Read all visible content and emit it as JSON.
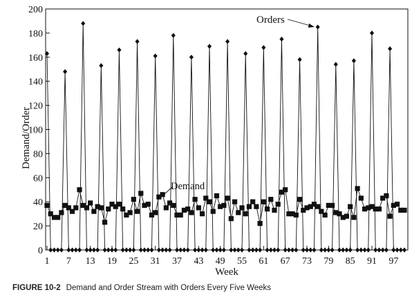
{
  "chart_data": {
    "type": "line",
    "xlabel": "Week",
    "ylabel": "Demand/Order",
    "xlim": [
      1,
      100
    ],
    "ylim": [
      0,
      200
    ],
    "x_ticks": [
      1,
      7,
      13,
      19,
      25,
      31,
      37,
      43,
      49,
      55,
      61,
      67,
      73,
      79,
      85,
      91,
      97
    ],
    "y_ticks": [
      0,
      20,
      40,
      60,
      80,
      100,
      120,
      140,
      160,
      180,
      200
    ],
    "grid": false,
    "series": [
      {
        "name": "Demand",
        "marker": "square",
        "color": "#111111",
        "x": [
          1,
          2,
          3,
          4,
          5,
          6,
          7,
          8,
          9,
          10,
          11,
          12,
          13,
          14,
          15,
          16,
          17,
          18,
          19,
          20,
          21,
          22,
          23,
          24,
          25,
          26,
          27,
          28,
          29,
          30,
          31,
          32,
          33,
          34,
          35,
          36,
          37,
          38,
          39,
          40,
          41,
          42,
          43,
          44,
          45,
          46,
          47,
          48,
          49,
          50,
          51,
          52,
          53,
          54,
          55,
          56,
          57,
          58,
          59,
          60,
          61,
          62,
          63,
          64,
          65,
          66,
          67,
          68,
          69,
          70,
          71,
          72,
          73,
          74,
          75,
          76,
          77,
          78,
          79,
          80,
          81,
          82,
          83,
          84,
          85,
          86,
          87,
          88,
          89,
          90,
          91,
          92,
          93,
          94,
          95,
          96,
          97,
          98,
          99,
          100
        ],
        "values": [
          37,
          30,
          27,
          27,
          31,
          37,
          35,
          32,
          35,
          50,
          37,
          35,
          39,
          32,
          36,
          35,
          23,
          34,
          38,
          36,
          38,
          34,
          29,
          31,
          42,
          32,
          47,
          37,
          38,
          29,
          31,
          44,
          46,
          35,
          39,
          37,
          29,
          29,
          33,
          34,
          31,
          42,
          35,
          30,
          43,
          40,
          32,
          45,
          36,
          37,
          43,
          26,
          40,
          31,
          35,
          30,
          36,
          40,
          36,
          22,
          40,
          34,
          42,
          33,
          38,
          48,
          50,
          30,
          30,
          29,
          42,
          33,
          35,
          36,
          38,
          36,
          32,
          29,
          37,
          37,
          31,
          30,
          27,
          28,
          36,
          27,
          51,
          43,
          34,
          35,
          36,
          34,
          34,
          43,
          45,
          28,
          37,
          38,
          33,
          33
        ]
      },
      {
        "name": "Orders",
        "marker": "diamond",
        "color": "#111111",
        "x": [
          1,
          2,
          3,
          4,
          5,
          6,
          7,
          8,
          9,
          10,
          11,
          12,
          13,
          14,
          15,
          16,
          17,
          18,
          19,
          20,
          21,
          22,
          23,
          24,
          25,
          26,
          27,
          28,
          29,
          30,
          31,
          32,
          33,
          34,
          35,
          36,
          37,
          38,
          39,
          40,
          41,
          42,
          43,
          44,
          45,
          46,
          47,
          48,
          49,
          50,
          51,
          52,
          53,
          54,
          55,
          56,
          57,
          58,
          59,
          60,
          61,
          62,
          63,
          64,
          65,
          66,
          67,
          68,
          69,
          70,
          71,
          72,
          73,
          74,
          75,
          76,
          77,
          78,
          79,
          80,
          81,
          82,
          83,
          84,
          85,
          86,
          87,
          88,
          89,
          90,
          91,
          92,
          93,
          94,
          95,
          96,
          97,
          98,
          99,
          100
        ],
        "values": [
          163,
          0,
          0,
          0,
          0,
          148,
          0,
          0,
          0,
          0,
          188,
          0,
          0,
          0,
          0,
          153,
          0,
          0,
          0,
          0,
          166,
          0,
          0,
          0,
          0,
          173,
          0,
          0,
          0,
          0,
          161,
          0,
          0,
          0,
          0,
          178,
          0,
          0,
          0,
          0,
          160,
          0,
          0,
          0,
          0,
          169,
          0,
          0,
          0,
          0,
          173,
          0,
          0,
          0,
          0,
          163,
          0,
          0,
          0,
          0,
          168,
          0,
          0,
          0,
          0,
          175,
          0,
          0,
          0,
          0,
          158,
          0,
          0,
          0,
          0,
          185,
          0,
          0,
          0,
          0,
          154,
          0,
          0,
          0,
          0,
          157,
          0,
          0,
          0,
          0,
          180,
          0,
          0,
          0,
          0,
          167,
          0,
          0,
          0,
          0
        ]
      }
    ],
    "annotations": [
      {
        "text": "Orders",
        "points_to_series": "Orders"
      },
      {
        "text": "Demand",
        "points_to_series": "Demand"
      }
    ]
  },
  "caption": {
    "label": "FIGURE 10-2",
    "text": "Demand and Order Stream with Orders Every Five Weeks"
  }
}
